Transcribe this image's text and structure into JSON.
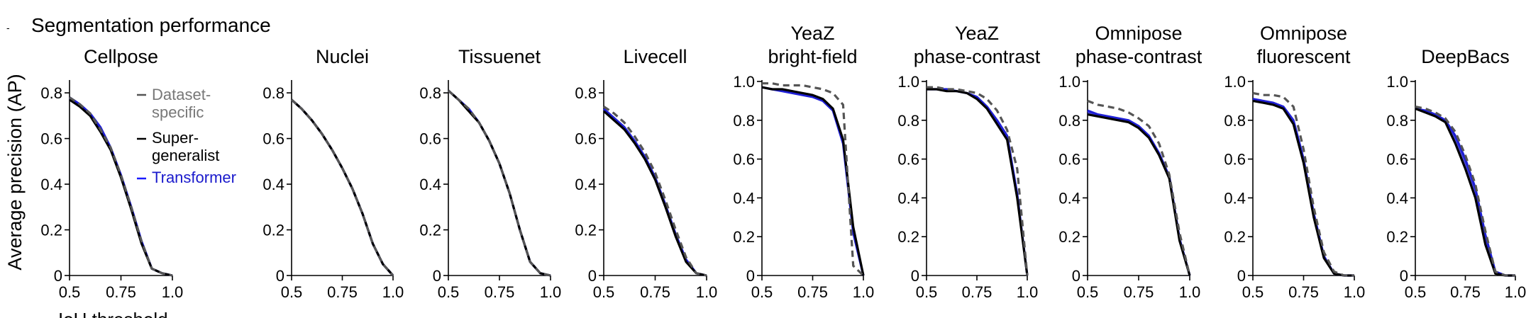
{
  "figure": {
    "panel_letter": "-",
    "heading": "Segmentation performance",
    "ylabel": "Average precision (AP)",
    "xlabel": "IoU threshold"
  },
  "legend": [
    {
      "label_lines": [
        "Dataset-",
        "specific"
      ],
      "color": "#555555",
      "dash": true,
      "text_color": "#777777"
    },
    {
      "label_lines": [
        "Super-",
        "generalist"
      ],
      "color": "#000000",
      "dash": false,
      "text_color": "#000000"
    },
    {
      "label_lines": [
        "Transformer"
      ],
      "color": "#1a1aff",
      "dash": false,
      "text_color": "#1a1acc"
    }
  ],
  "colors": {
    "dataset_specific": "#555555",
    "super_generalist": "#000000",
    "transformer": "#1f1fd6",
    "band": "#2a2ac8"
  },
  "chart_data": [
    {
      "type": "line",
      "title_lines": [
        "Cellpose"
      ],
      "x": [
        0.5,
        0.55,
        0.6,
        0.65,
        0.7,
        0.75,
        0.8,
        0.85,
        0.9,
        0.95,
        1.0
      ],
      "xlim": [
        0.5,
        1.0
      ],
      "ylim": [
        0,
        0.85
      ],
      "xticks": [
        0.5,
        0.75,
        1.0
      ],
      "xtick_labels": [
        "0.5",
        "0.75",
        "1.0"
      ],
      "yticks": [
        0,
        0.2,
        0.4,
        0.6,
        0.8
      ],
      "ytick_labels": [
        "0",
        "0.2",
        "0.4",
        "0.6",
        "0.8"
      ],
      "series": [
        {
          "name": "Dataset-specific",
          "values": [
            0.78,
            0.75,
            0.71,
            0.64,
            0.56,
            0.44,
            0.3,
            0.15,
            0.03,
            0.01,
            0.0
          ]
        },
        {
          "name": "Super-generalist",
          "values": [
            0.77,
            0.74,
            0.7,
            0.63,
            0.55,
            0.43,
            0.29,
            0.14,
            0.03,
            0.01,
            0.0
          ]
        },
        {
          "name": "Transformer",
          "values": [
            0.78,
            0.75,
            0.71,
            0.65,
            0.56,
            0.44,
            0.3,
            0.15,
            0.03,
            0.01,
            0.0
          ]
        }
      ]
    },
    {
      "type": "line",
      "title_lines": [
        "Nuclei"
      ],
      "x": [
        0.5,
        0.55,
        0.6,
        0.65,
        0.7,
        0.75,
        0.8,
        0.85,
        0.9,
        0.95,
        1.0
      ],
      "xlim": [
        0.5,
        1.0
      ],
      "ylim": [
        0,
        0.85
      ],
      "xticks": [
        0.5,
        0.75,
        1.0
      ],
      "xtick_labels": [
        "0.5",
        "0.75",
        "1.0"
      ],
      "yticks": [
        0,
        0.2,
        0.4,
        0.6,
        0.8
      ],
      "ytick_labels": [
        "0",
        "0.2",
        "0.4",
        "0.6",
        "0.8"
      ],
      "series": [
        {
          "name": "Dataset-specific",
          "values": [
            0.77,
            0.73,
            0.68,
            0.62,
            0.55,
            0.47,
            0.38,
            0.27,
            0.14,
            0.05,
            0.0
          ]
        },
        {
          "name": "Super-generalist",
          "values": [
            0.77,
            0.73,
            0.68,
            0.62,
            0.55,
            0.47,
            0.38,
            0.27,
            0.14,
            0.05,
            0.0
          ]
        },
        {
          "name": "Transformer",
          "values": [
            0.77,
            0.73,
            0.68,
            0.62,
            0.55,
            0.47,
            0.38,
            0.27,
            0.14,
            0.05,
            0.0
          ]
        }
      ]
    },
    {
      "type": "line",
      "title_lines": [
        "Tissuenet"
      ],
      "x": [
        0.5,
        0.55,
        0.6,
        0.65,
        0.7,
        0.75,
        0.8,
        0.85,
        0.9,
        0.95,
        1.0
      ],
      "xlim": [
        0.5,
        1.0
      ],
      "ylim": [
        0,
        0.85
      ],
      "xticks": [
        0.5,
        0.75,
        1.0
      ],
      "xtick_labels": [
        "0.5",
        "0.75",
        "1.0"
      ],
      "yticks": [
        0,
        0.2,
        0.4,
        0.6,
        0.8
      ],
      "ytick_labels": [
        "0",
        "0.2",
        "0.4",
        "0.6",
        "0.8"
      ],
      "series": [
        {
          "name": "Dataset-specific",
          "values": [
            0.81,
            0.77,
            0.73,
            0.67,
            0.59,
            0.49,
            0.36,
            0.2,
            0.06,
            0.01,
            0.0
          ]
        },
        {
          "name": "Super-generalist",
          "values": [
            0.81,
            0.77,
            0.72,
            0.67,
            0.59,
            0.49,
            0.36,
            0.2,
            0.06,
            0.01,
            0.0
          ]
        },
        {
          "name": "Transformer",
          "values": [
            0.81,
            0.77,
            0.73,
            0.67,
            0.59,
            0.49,
            0.36,
            0.2,
            0.06,
            0.01,
            0.0
          ]
        }
      ]
    },
    {
      "type": "line",
      "title_lines": [
        "Livecell"
      ],
      "x": [
        0.5,
        0.55,
        0.6,
        0.65,
        0.7,
        0.75,
        0.8,
        0.85,
        0.9,
        0.95,
        1.0
      ],
      "xlim": [
        0.5,
        1.0
      ],
      "ylim": [
        0,
        0.85
      ],
      "xticks": [
        0.5,
        0.75,
        1.0
      ],
      "xtick_labels": [
        "0.5",
        "0.75",
        "1.0"
      ],
      "yticks": [
        0,
        0.2,
        0.4,
        0.6,
        0.8
      ],
      "ytick_labels": [
        "0",
        "0.2",
        "0.4",
        "0.6",
        "0.8"
      ],
      "series": [
        {
          "name": "Dataset-specific",
          "values": [
            0.74,
            0.71,
            0.67,
            0.61,
            0.54,
            0.45,
            0.33,
            0.2,
            0.08,
            0.01,
            0.0
          ]
        },
        {
          "name": "Super-generalist",
          "values": [
            0.72,
            0.68,
            0.64,
            0.58,
            0.51,
            0.42,
            0.3,
            0.17,
            0.06,
            0.01,
            0.0
          ]
        },
        {
          "name": "Transformer",
          "values": [
            0.73,
            0.69,
            0.65,
            0.59,
            0.52,
            0.43,
            0.31,
            0.18,
            0.07,
            0.01,
            0.0
          ]
        }
      ]
    },
    {
      "type": "line",
      "title_lines": [
        "YeaZ",
        "bright-field"
      ],
      "x": [
        0.5,
        0.55,
        0.6,
        0.65,
        0.7,
        0.75,
        0.8,
        0.85,
        0.9,
        0.95,
        1.0
      ],
      "xlim": [
        0.5,
        1.0
      ],
      "ylim": [
        0,
        1.0
      ],
      "xticks": [
        0.5,
        0.75,
        1.0
      ],
      "xtick_labels": [
        "0.5",
        "0.75",
        "1.0"
      ],
      "yticks": [
        0,
        0.2,
        0.4,
        0.6,
        0.8,
        1.0
      ],
      "ytick_labels": [
        "0",
        "0.2",
        "0.4",
        "0.6",
        "0.8",
        "1.0"
      ],
      "series": [
        {
          "name": "Dataset-specific",
          "values": [
            0.99,
            0.99,
            0.98,
            0.98,
            0.98,
            0.97,
            0.96,
            0.94,
            0.88,
            0.05,
            0.0
          ]
        },
        {
          "name": "Super-generalist",
          "values": [
            0.97,
            0.96,
            0.96,
            0.95,
            0.94,
            0.93,
            0.91,
            0.86,
            0.7,
            0.25,
            0.0
          ]
        },
        {
          "name": "Transformer",
          "values": [
            0.97,
            0.96,
            0.95,
            0.94,
            0.93,
            0.92,
            0.9,
            0.85,
            0.68,
            0.22,
            0.0
          ]
        }
      ]
    },
    {
      "type": "line",
      "title_lines": [
        "YeaZ",
        "phase-contrast"
      ],
      "x": [
        0.5,
        0.55,
        0.6,
        0.65,
        0.7,
        0.75,
        0.8,
        0.85,
        0.9,
        0.95,
        1.0
      ],
      "xlim": [
        0.5,
        1.0
      ],
      "ylim": [
        0,
        1.0
      ],
      "xticks": [
        0.5,
        0.75,
        1.0
      ],
      "xtick_labels": [
        "0.5",
        "0.75",
        "1.0"
      ],
      "yticks": [
        0,
        0.2,
        0.4,
        0.6,
        0.8,
        1.0
      ],
      "ytick_labels": [
        "0",
        "0.2",
        "0.4",
        "0.6",
        "0.8",
        "1.0"
      ],
      "series": [
        {
          "name": "Dataset-specific",
          "values": [
            0.97,
            0.97,
            0.96,
            0.96,
            0.95,
            0.94,
            0.91,
            0.85,
            0.75,
            0.55,
            0.0
          ]
        },
        {
          "name": "Super-generalist",
          "values": [
            0.96,
            0.96,
            0.95,
            0.95,
            0.94,
            0.91,
            0.86,
            0.78,
            0.7,
            0.4,
            0.0
          ]
        },
        {
          "name": "Transformer",
          "values": [
            0.96,
            0.96,
            0.96,
            0.95,
            0.94,
            0.92,
            0.87,
            0.8,
            0.72,
            0.42,
            0.0
          ]
        }
      ]
    },
    {
      "type": "line",
      "title_lines": [
        "Omnipose",
        "phase-contrast"
      ],
      "x": [
        0.5,
        0.55,
        0.6,
        0.65,
        0.7,
        0.75,
        0.8,
        0.85,
        0.9,
        0.95,
        1.0
      ],
      "xlim": [
        0.5,
        1.0
      ],
      "ylim": [
        0,
        1.0
      ],
      "xticks": [
        0.5,
        0.75,
        1.0
      ],
      "xtick_labels": [
        "0.5",
        "0.75",
        "1.0"
      ],
      "yticks": [
        0,
        0.2,
        0.4,
        0.6,
        0.8,
        1.0
      ],
      "ytick_labels": [
        "0",
        "0.2",
        "0.4",
        "0.6",
        "0.8",
        "1.0"
      ],
      "series": [
        {
          "name": "Dataset-specific",
          "values": [
            0.9,
            0.88,
            0.87,
            0.86,
            0.84,
            0.81,
            0.77,
            0.68,
            0.52,
            0.22,
            0.0
          ]
        },
        {
          "name": "Super-generalist",
          "values": [
            0.83,
            0.82,
            0.81,
            0.8,
            0.79,
            0.76,
            0.71,
            0.62,
            0.5,
            0.18,
            0.0
          ]
        },
        {
          "name": "Transformer",
          "values": [
            0.85,
            0.83,
            0.82,
            0.81,
            0.8,
            0.77,
            0.72,
            0.63,
            0.51,
            0.19,
            0.0
          ]
        }
      ]
    },
    {
      "type": "line",
      "title_lines": [
        "Omnipose",
        "fluorescent"
      ],
      "x": [
        0.5,
        0.55,
        0.6,
        0.65,
        0.7,
        0.75,
        0.8,
        0.85,
        0.9,
        0.95,
        1.0
      ],
      "xlim": [
        0.5,
        1.0
      ],
      "ylim": [
        0,
        1.0
      ],
      "xticks": [
        0.5,
        0.75,
        1.0
      ],
      "xtick_labels": [
        "0.5",
        "0.75",
        "1.0"
      ],
      "yticks": [
        0,
        0.2,
        0.4,
        0.6,
        0.8,
        1.0
      ],
      "ytick_labels": [
        "0",
        "0.2",
        "0.4",
        "0.6",
        "0.8",
        "1.0"
      ],
      "series": [
        {
          "name": "Dataset-specific",
          "values": [
            0.94,
            0.93,
            0.93,
            0.92,
            0.87,
            0.65,
            0.35,
            0.12,
            0.02,
            0.0,
            0.0
          ]
        },
        {
          "name": "Super-generalist",
          "values": [
            0.9,
            0.89,
            0.88,
            0.86,
            0.78,
            0.58,
            0.3,
            0.09,
            0.01,
            0.0,
            0.0
          ]
        },
        {
          "name": "Transformer",
          "values": [
            0.91,
            0.9,
            0.89,
            0.87,
            0.8,
            0.6,
            0.32,
            0.1,
            0.01,
            0.0,
            0.0
          ]
        }
      ]
    },
    {
      "type": "line",
      "title_lines": [
        "DeepBacs"
      ],
      "x": [
        0.5,
        0.55,
        0.6,
        0.65,
        0.7,
        0.75,
        0.8,
        0.85,
        0.9,
        0.95,
        1.0
      ],
      "xlim": [
        0.5,
        1.0
      ],
      "ylim": [
        0,
        1.0
      ],
      "xticks": [
        0.5,
        0.75,
        1.0
      ],
      "xtick_labels": [
        "0.5",
        "0.75",
        "1.0"
      ],
      "yticks": [
        0,
        0.2,
        0.4,
        0.6,
        0.8,
        1.0
      ],
      "ytick_labels": [
        "0",
        "0.2",
        "0.4",
        "0.6",
        "0.8",
        "1.0"
      ],
      "series": [
        {
          "name": "Dataset-specific",
          "values": [
            0.87,
            0.86,
            0.84,
            0.81,
            0.74,
            0.62,
            0.47,
            0.23,
            0.02,
            0.0,
            0.0
          ]
        },
        {
          "name": "Super-generalist",
          "values": [
            0.86,
            0.84,
            0.82,
            0.79,
            0.68,
            0.55,
            0.4,
            0.16,
            0.01,
            0.0,
            0.0
          ]
        },
        {
          "name": "Transformer",
          "values": [
            0.86,
            0.85,
            0.83,
            0.8,
            0.72,
            0.6,
            0.45,
            0.21,
            0.02,
            0.0,
            0.0
          ]
        }
      ]
    }
  ]
}
